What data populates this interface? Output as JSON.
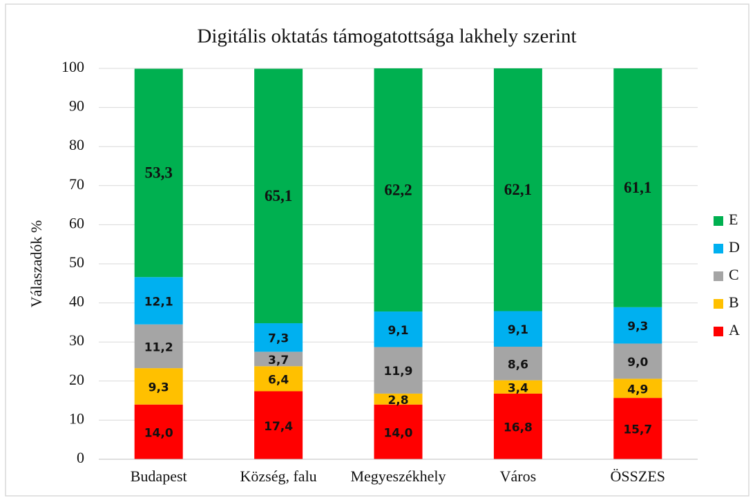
{
  "chart_data": {
    "type": "stacked_bar",
    "title": "Digitális  oktatás támogatottsága lakhely  szerint",
    "y_label": "Válaszadók %",
    "categories": [
      "Budapest",
      "Község, falu",
      "Megyeszékhely",
      "Város",
      "ÖSSZES"
    ],
    "series": [
      {
        "name": "A",
        "color": "#ff0000",
        "values": [
          14.0,
          17.4,
          14.0,
          16.8,
          15.7
        ],
        "value_labels": [
          "14,0",
          "17,4",
          "14,0",
          "16,8",
          "15,7"
        ]
      },
      {
        "name": "B",
        "color": "#ffc000",
        "values": [
          9.3,
          6.4,
          2.8,
          3.4,
          4.9
        ],
        "value_labels": [
          "9,3",
          "6,4",
          "2,8",
          "3,4",
          "4,9"
        ]
      },
      {
        "name": "C",
        "color": "#a5a5a5",
        "values": [
          11.2,
          3.7,
          11.9,
          8.6,
          9.0
        ],
        "value_labels": [
          "11,2",
          "3,7",
          "11,9",
          "8,6",
          "9,0"
        ]
      },
      {
        "name": "D",
        "color": "#00b0f0",
        "values": [
          12.1,
          7.3,
          9.1,
          9.1,
          9.3
        ],
        "value_labels": [
          "12,1",
          "7,3",
          "9,1",
          "9,1",
          "9,3"
        ]
      },
      {
        "name": "E",
        "color": "#00b050",
        "values": [
          53.3,
          65.1,
          62.2,
          62.1,
          61.1
        ],
        "value_labels": [
          "53,3",
          "65,1",
          "62,2",
          "62,1",
          "61,1"
        ]
      }
    ],
    "ylim": [
      0,
      100
    ],
    "yticks": [
      0,
      10,
      20,
      30,
      40,
      50,
      60,
      70,
      80,
      90,
      100
    ],
    "grid": true,
    "legend": "right"
  }
}
